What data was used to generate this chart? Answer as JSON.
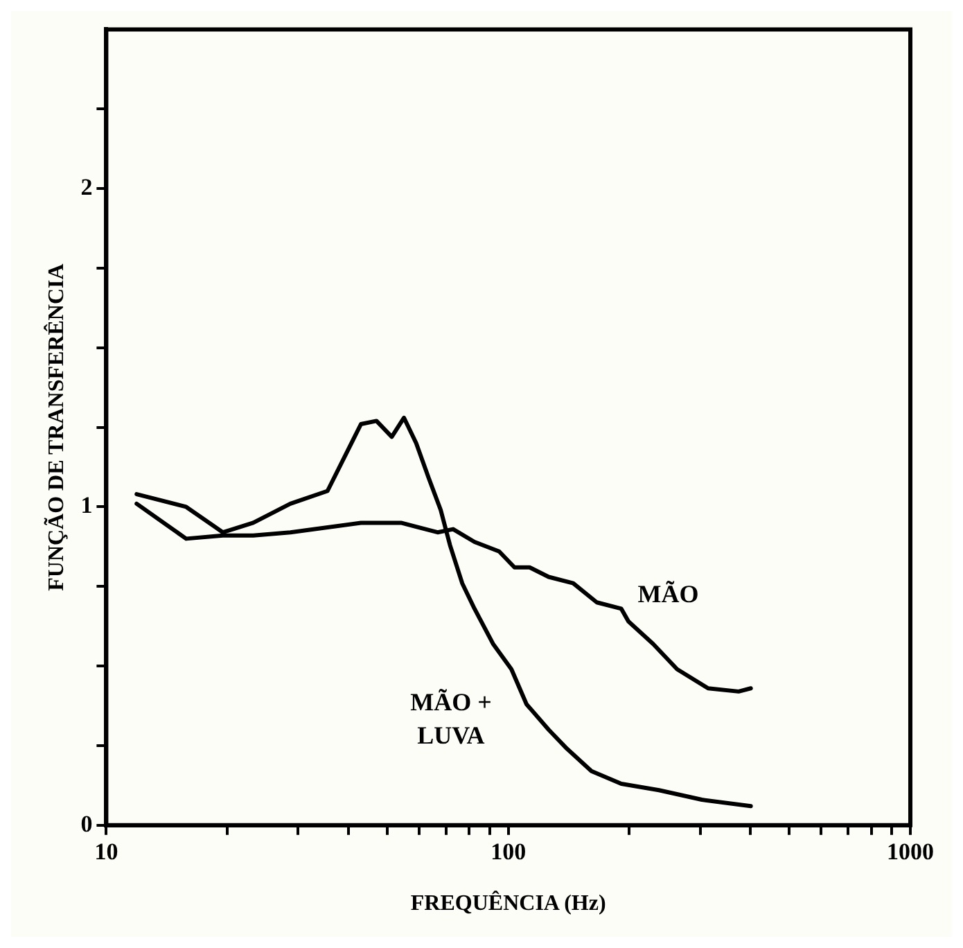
{
  "chart_data": {
    "type": "line",
    "xlabel": "FREQUÊNCIA (Hz)",
    "ylabel": "FUNÇÃO DE TRANSFERÊNCIA",
    "log": "x",
    "grid": false,
    "legend": false,
    "marker": "none",
    "line_style": "solid",
    "xlim": [
      10,
      1000
    ],
    "xticks": [
      10,
      {
        "value": 20,
        "label": null
      },
      {
        "value": 30,
        "label": null
      },
      {
        "value": 40,
        "label": null
      },
      {
        "value": 50,
        "label": null
      },
      {
        "value": 60,
        "label": null
      },
      {
        "value": 70,
        "label": null
      },
      {
        "value": 80,
        "label": null
      },
      {
        "value": 90,
        "label": null
      },
      100,
      {
        "value": 200,
        "label": null
      },
      {
        "value": 300,
        "label": null
      },
      {
        "value": 400,
        "label": null
      },
      {
        "value": 500,
        "label": null
      },
      {
        "value": 600,
        "label": null
      },
      {
        "value": 700,
        "label": null
      },
      {
        "value": 800,
        "label": null
      },
      {
        "value": 900,
        "label": null
      },
      1000
    ],
    "ylim": [
      0,
      2.5
    ],
    "yticks": [
      0,
      {
        "value": 0.25,
        "label": null
      },
      {
        "value": 0.5,
        "label": null
      },
      {
        "value": 0.75,
        "label": null
      },
      1,
      {
        "value": 1.25,
        "label": null
      },
      {
        "value": 1.5,
        "label": null
      },
      {
        "value": 1.75,
        "label": null
      },
      2,
      {
        "value": 2.25,
        "label": null
      }
    ],
    "series": [
      {
        "name": "MÃO + LUVA",
        "color": "#000000",
        "x": [
          11.9,
          15.8,
          19.5,
          23.2,
          28.7,
          35.5,
          43.0,
          47.0,
          51.3,
          55.0,
          59.0,
          63.4,
          67.9,
          71.6,
          76.8,
          82.4,
          91.6,
          101.8,
          111,
          126,
          140,
          161,
          191,
          237,
          303,
          401
        ],
        "values": [
          1.04,
          1.0,
          0.92,
          0.95,
          1.01,
          1.05,
          1.26,
          1.27,
          1.22,
          1.28,
          1.2,
          1.09,
          0.99,
          0.88,
          0.76,
          0.68,
          0.57,
          0.49,
          0.38,
          0.3,
          0.24,
          0.17,
          0.13,
          0.11,
          0.08,
          0.06
        ]
      },
      {
        "name": "MÃO",
        "color": "#000000",
        "x": [
          11.9,
          15.8,
          19.5,
          23.2,
          28.7,
          33.0,
          43.0,
          54.1,
          66.7,
          72.9,
          82.4,
          94.9,
          103.6,
          113,
          126,
          145,
          166,
          191,
          199,
          229,
          263,
          314,
          374,
          401
        ],
        "values": [
          1.01,
          0.9,
          0.91,
          0.91,
          0.92,
          0.93,
          0.95,
          0.95,
          0.92,
          0.93,
          0.89,
          0.86,
          0.81,
          0.81,
          0.78,
          0.76,
          0.7,
          0.68,
          0.64,
          0.57,
          0.49,
          0.43,
          0.42,
          0.43
        ]
      }
    ]
  }
}
